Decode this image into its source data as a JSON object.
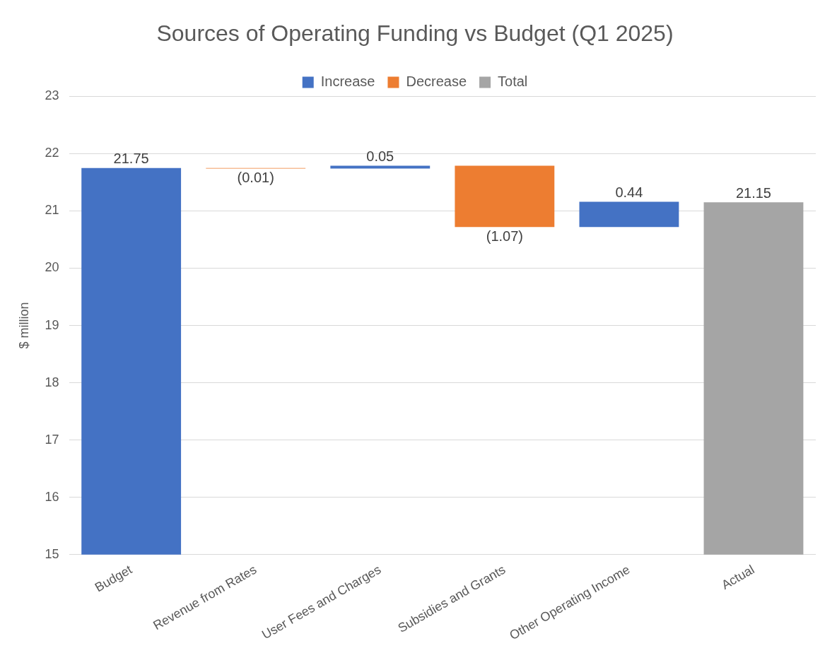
{
  "chart_data": {
    "type": "bar",
    "title": "Sources of Operating Funding vs Budget (Q1 2025)",
    "ylabel": "$ million",
    "categories": [
      "Budget",
      "Revenue from Rates",
      "User Fees and Charges",
      "Subsidies and Grants",
      "Other Operating Income",
      "Actual"
    ],
    "series": [
      {
        "name": "Increase",
        "color": "#4472c4",
        "values": [
          21.75,
          null,
          0.05,
          null,
          0.44,
          null
        ],
        "base": [
          null,
          null,
          21.74,
          null,
          20.72,
          null
        ],
        "value_labels": [
          "21.75",
          null,
          "0.05",
          null,
          "0.44",
          null
        ]
      },
      {
        "name": "Decrease",
        "color": "#ed7d31",
        "values": [
          null,
          -0.01,
          null,
          -1.07,
          null,
          null
        ],
        "base": [
          null,
          21.75,
          null,
          21.79,
          null,
          null
        ],
        "value_labels": [
          null,
          "(0.01)",
          null,
          "(1.07)",
          null,
          null
        ]
      },
      {
        "name": "Total",
        "color": "#a5a5a5",
        "values": [
          null,
          null,
          null,
          null,
          null,
          21.15
        ],
        "value_labels": [
          null,
          null,
          null,
          null,
          null,
          "21.15"
        ]
      }
    ],
    "ylim": [
      15,
      23
    ],
    "yticks": [
      15,
      16,
      17,
      18,
      19,
      20,
      21,
      22,
      23
    ],
    "grid": "y",
    "legend": "top"
  }
}
